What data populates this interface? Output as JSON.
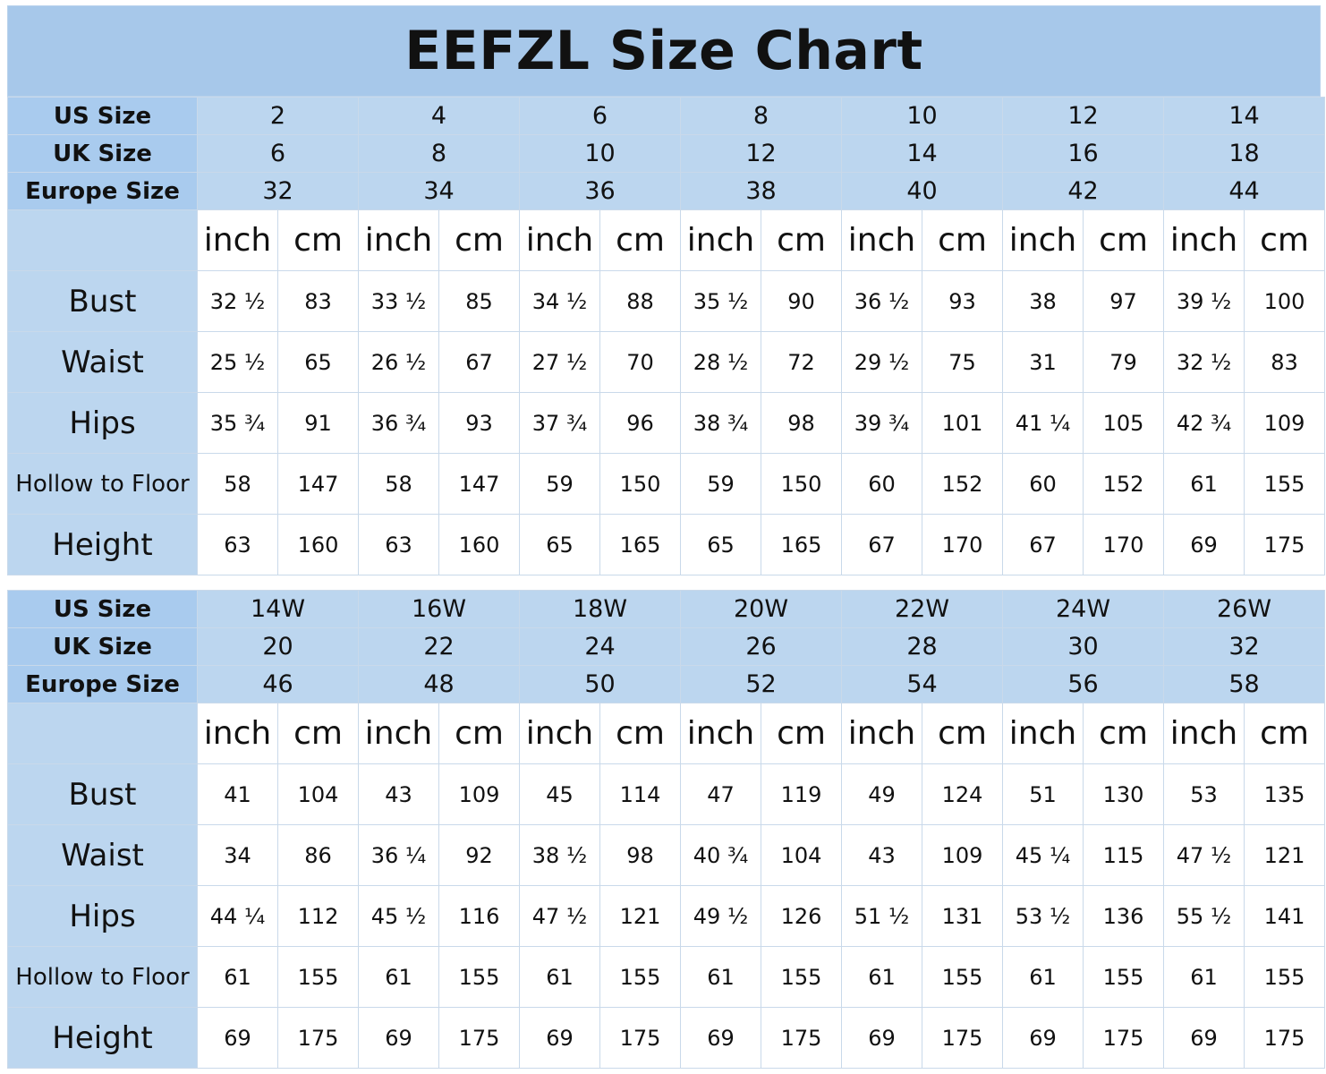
{
  "title": "EEFZL Size Chart",
  "labels": {
    "us": "US Size",
    "uk": "UK Size",
    "eu": "Europe Size",
    "inch": "inch",
    "cm": "cm",
    "bust": "Bust",
    "waist": "Waist",
    "hips": "Hips",
    "hollow": "Hollow to Floor",
    "height": "Height"
  },
  "tables": [
    {
      "us": [
        "2",
        "4",
        "6",
        "8",
        "10",
        "12",
        "14"
      ],
      "uk": [
        "6",
        "8",
        "10",
        "12",
        "14",
        "16",
        "18"
      ],
      "eu": [
        "32",
        "34",
        "36",
        "38",
        "40",
        "42",
        "44"
      ],
      "bust": [
        "32 ½",
        "83",
        "33 ½",
        "85",
        "34 ½",
        "88",
        "35 ½",
        "90",
        "36 ½",
        "93",
        "38",
        "97",
        "39 ½",
        "100"
      ],
      "waist": [
        "25 ½",
        "65",
        "26 ½",
        "67",
        "27 ½",
        "70",
        "28 ½",
        "72",
        "29 ½",
        "75",
        "31",
        "79",
        "32 ½",
        "83"
      ],
      "hips": [
        "35 ¾",
        "91",
        "36 ¾",
        "93",
        "37 ¾",
        "96",
        "38 ¾",
        "98",
        "39 ¾",
        "101",
        "41 ¼",
        "105",
        "42 ¾",
        "109"
      ],
      "hollow": [
        "58",
        "147",
        "58",
        "147",
        "59",
        "150",
        "59",
        "150",
        "60",
        "152",
        "60",
        "152",
        "61",
        "155"
      ],
      "height": [
        "63",
        "160",
        "63",
        "160",
        "65",
        "165",
        "65",
        "165",
        "67",
        "170",
        "67",
        "170",
        "69",
        "175"
      ]
    },
    {
      "us": [
        "14W",
        "16W",
        "18W",
        "20W",
        "22W",
        "24W",
        "26W"
      ],
      "uk": [
        "20",
        "22",
        "24",
        "26",
        "28",
        "30",
        "32"
      ],
      "eu": [
        "46",
        "48",
        "50",
        "52",
        "54",
        "56",
        "58"
      ],
      "bust": [
        "41",
        "104",
        "43",
        "109",
        "45",
        "114",
        "47",
        "119",
        "49",
        "124",
        "51",
        "130",
        "53",
        "135"
      ],
      "waist": [
        "34",
        "86",
        "36 ¼",
        "92",
        "38 ½",
        "98",
        "40 ¾",
        "104",
        "43",
        "109",
        "45 ¼",
        "115",
        "47 ½",
        "121"
      ],
      "hips": [
        "44 ¼",
        "112",
        "45 ½",
        "116",
        "47 ½",
        "121",
        "49 ½",
        "126",
        "51 ½",
        "131",
        "53 ½",
        "136",
        "55 ½",
        "141"
      ],
      "hollow": [
        "61",
        "155",
        "61",
        "155",
        "61",
        "155",
        "61",
        "155",
        "61",
        "155",
        "61",
        "155",
        "61",
        "155"
      ],
      "height": [
        "69",
        "175",
        "69",
        "175",
        "69",
        "175",
        "69",
        "175",
        "69",
        "175",
        "69",
        "175",
        "69",
        "175"
      ]
    }
  ]
}
